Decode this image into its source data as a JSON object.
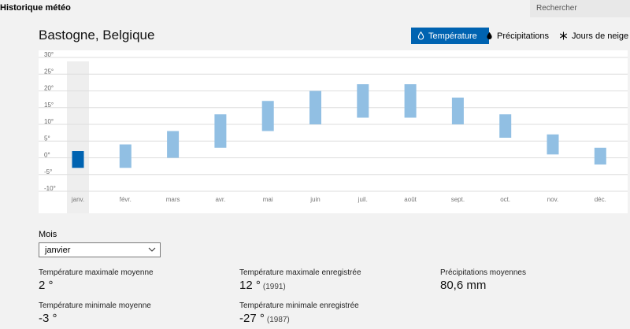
{
  "app": {
    "title": "Historique météo"
  },
  "search": {
    "placeholder": "Rechercher"
  },
  "location": "Bastogne, Belgique",
  "toggles": {
    "temperature": "Température",
    "precipitation": "Précipitations",
    "snow": "Jours de neige"
  },
  "colors": {
    "accent": "#0063b1",
    "bar": "#91bfe3",
    "selected_bar": "#0063b1",
    "selected_column": "#eeeeee"
  },
  "chart_data": {
    "type": "range-bar",
    "categories": [
      "janv.",
      "févr.",
      "mars",
      "avr.",
      "mai",
      "juin",
      "juil.",
      "août",
      "sept.",
      "oct.",
      "nov.",
      "déc."
    ],
    "min": [
      -3,
      -3,
      0,
      3,
      8,
      10,
      12,
      12,
      10,
      6,
      1,
      -2
    ],
    "max": [
      2,
      4,
      8,
      13,
      17,
      20,
      22,
      22,
      18,
      13,
      7,
      3
    ],
    "selected_index": 0,
    "ylim": [
      -10,
      30
    ],
    "yticks": [
      "30°",
      "25°",
      "20°",
      "15°",
      "10°",
      "5°",
      "0°",
      "-5°",
      "-10°"
    ],
    "grid": true
  },
  "month_selector": {
    "label": "Mois",
    "value": "janvier"
  },
  "stats": {
    "avg_max": {
      "label": "Température maximale moyenne",
      "value": "2 °"
    },
    "avg_min": {
      "label": "Température minimale moyenne",
      "value": "-3 °"
    },
    "record_max": {
      "label": "Température maximale enregistrée",
      "value": "12 °",
      "year": "(1991)"
    },
    "record_min": {
      "label": "Température minimale enregistrée",
      "value": "-27 °",
      "year": "(1987)"
    },
    "precip": {
      "label": "Précipitations moyennes",
      "value": "80,6 mm"
    }
  }
}
